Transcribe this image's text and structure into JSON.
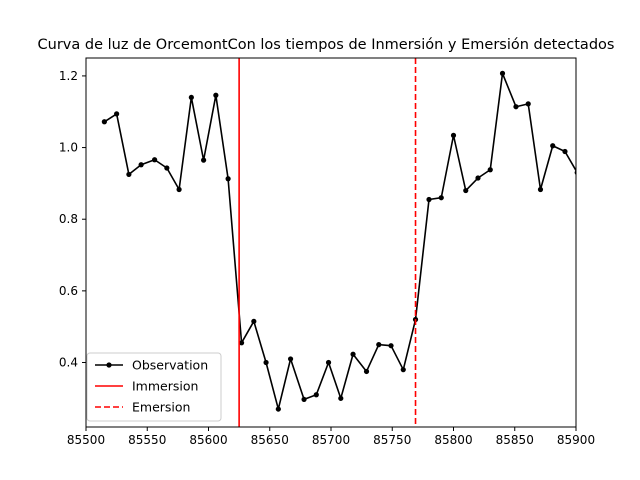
{
  "chart_data": {
    "type": "line",
    "title": "Curva de luz de OrcemontCon los tiempos de Inmersión y Emersión detectados",
    "xlabel": "",
    "ylabel": "",
    "xlim": [
      85500,
      85900
    ],
    "ylim": [
      0.22,
      1.25
    ],
    "xticks": [
      85500,
      85550,
      85600,
      85650,
      85700,
      85750,
      85800,
      85850,
      85900
    ],
    "yticks": [
      0.4,
      0.6,
      0.8,
      1.0,
      1.2
    ],
    "grid": false,
    "legend_position": "lower-left",
    "series": [
      {
        "name": "Observation",
        "color": "#000000",
        "marker": "circle",
        "x": [
          85515,
          85525,
          85535,
          85545,
          85556,
          85566,
          85576,
          85586,
          85596,
          85606,
          85616,
          85627,
          85637,
          85647,
          85657,
          85667,
          85678,
          85688,
          85698,
          85708,
          85718,
          85729,
          85739,
          85749,
          85759,
          85769,
          85780,
          85790,
          85800,
          85810,
          85820,
          85830,
          85840,
          85851,
          85861,
          85871,
          85881,
          85891,
          85901
        ],
        "values": [
          1.072,
          1.094,
          0.925,
          0.952,
          0.966,
          0.943,
          0.883,
          1.14,
          0.965,
          1.146,
          0.913,
          0.455,
          0.515,
          0.4,
          0.27,
          0.41,
          0.297,
          0.31,
          0.4,
          0.3,
          0.423,
          0.375,
          0.45,
          0.447,
          0.38,
          0.52,
          0.855,
          0.86,
          1.034,
          0.88,
          0.915,
          0.938,
          1.207,
          1.114,
          1.122,
          0.883,
          1.005,
          0.989,
          0.93
        ]
      }
    ],
    "events": [
      {
        "name": "Immersion",
        "x": 85625,
        "color": "#ff0000",
        "style": "solid"
      },
      {
        "name": "Emersion",
        "x": 85769,
        "color": "#ff0000",
        "style": "dashed"
      }
    ]
  }
}
